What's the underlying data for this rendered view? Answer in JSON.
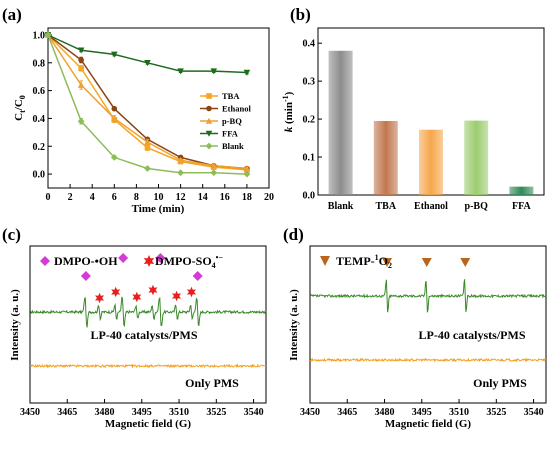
{
  "chart_data": [
    {
      "panel": "(a)",
      "type": "line",
      "xlabel": "Time (min)",
      "ylabel": "Ct/C0",
      "xlim": [
        0,
        20
      ],
      "ylim": [
        -0.1,
        1.05
      ],
      "xticks": [
        0,
        2,
        4,
        6,
        8,
        10,
        12,
        14,
        16,
        18,
        20
      ],
      "yticks": [
        0.0,
        0.2,
        0.4,
        0.6,
        0.8,
        1.0
      ],
      "ytick_labels": [
        "0.0",
        "0.2",
        "0.4",
        "0.6",
        "0.8",
        "1.0"
      ],
      "legend_position": "center-right",
      "x": [
        0,
        3,
        6,
        9,
        12,
        15,
        18
      ],
      "series": [
        {
          "name": "TBA",
          "color": "#f5a623",
          "marker": "square",
          "values": [
            1.0,
            0.76,
            0.39,
            0.19,
            0.09,
            0.05,
            0.03
          ],
          "errors": [
            0,
            0.02,
            0.02,
            0.02,
            0.01,
            0.01,
            0.01
          ]
        },
        {
          "name": "Ethanol",
          "color": "#8b4513",
          "marker": "circle",
          "values": [
            1.0,
            0.82,
            0.47,
            0.25,
            0.12,
            0.06,
            0.04
          ],
          "errors": [
            0,
            0.02,
            0.01,
            0.01,
            0.01,
            0.01,
            0.01
          ]
        },
        {
          "name": "p-BQ",
          "color": "#f0a030",
          "marker": "triangle-up",
          "values": [
            1.0,
            0.64,
            0.4,
            0.23,
            0.1,
            0.06,
            0.04
          ],
          "errors": [
            0,
            0.03,
            0.02,
            0.02,
            0.01,
            0.01,
            0.01
          ]
        },
        {
          "name": "FFA",
          "color": "#1e6b1e",
          "marker": "triangle-down",
          "values": [
            1.0,
            0.89,
            0.86,
            0.8,
            0.74,
            0.74,
            0.73
          ],
          "errors": [
            0,
            0.01,
            0.01,
            0.01,
            0.01,
            0.01,
            0.01
          ]
        },
        {
          "name": "Blank",
          "color": "#8fbc5a",
          "marker": "diamond",
          "values": [
            1.0,
            0.38,
            0.12,
            0.04,
            0.01,
            0.01,
            0.0
          ],
          "errors": [
            0,
            0.02,
            0.01,
            0.01,
            0.005,
            0.005,
            0.005
          ]
        }
      ]
    },
    {
      "panel": "(b)",
      "type": "bar",
      "ylabel_prefix": "k",
      "ylabel_suffix": " (min",
      "ylabel_power": "-1",
      "ylabel_end": ")",
      "ylim": [
        0,
        0.44
      ],
      "yticks": [
        0.0,
        0.1,
        0.2,
        0.3,
        0.4
      ],
      "ytick_labels": [
        "0.0",
        "0.1",
        "0.2",
        "0.3",
        "0.4"
      ],
      "categories": [
        "Blank",
        "TBA",
        "Ethanol",
        "p-BQ",
        "FFA"
      ],
      "values": [
        0.38,
        0.195,
        0.172,
        0.196,
        0.022
      ],
      "colors": [
        "#8c8c8c",
        "#c1774f",
        "#f5a64a",
        "#9ccc6f",
        "#2e8b57"
      ]
    },
    {
      "panel": "(c)",
      "type": "line",
      "xlabel": "Magnetic field (G)",
      "ylabel": "Intensity (a. u.)",
      "xlim": [
        3450,
        3545
      ],
      "xticks": [
        3450,
        3465,
        3480,
        3495,
        3510,
        3525,
        3540
      ],
      "legend": {
        "diamond_label": "DMPO-•OH",
        "star_label_main": "DMPO-SO",
        "star_label_sub": "4",
        "star_label_sup": "•−"
      },
      "series": [
        {
          "name": "LP-40 catalysts/PMS",
          "color": "#3a8a28"
        },
        {
          "name": "Only PMS",
          "color": "#f5a020"
        }
      ],
      "oh_peaks": [
        3472.5,
        3487.5,
        3502.5,
        3517.5
      ],
      "so4_peaks": [
        3478,
        3484.5,
        3493,
        3499.5,
        3509,
        3515
      ]
    },
    {
      "panel": "(d)",
      "type": "line",
      "xlabel": "Magnetic field (G)",
      "ylabel": "Intensity (a. u.)",
      "xlim": [
        3450,
        3545
      ],
      "xticks": [
        3450,
        3465,
        3480,
        3495,
        3510,
        3525,
        3540
      ],
      "legend": {
        "label_main": "TEMP-",
        "label_sup": "1",
        "label_end": "O",
        "label_sub": "2"
      },
      "series": [
        {
          "name": "LP-40 catalysts/PMS",
          "color": "#3a8a28"
        },
        {
          "name": "Only PMS",
          "color": "#f5a020"
        }
      ],
      "triplet_peaks": [
        3481,
        3497,
        3512.5
      ]
    }
  ]
}
